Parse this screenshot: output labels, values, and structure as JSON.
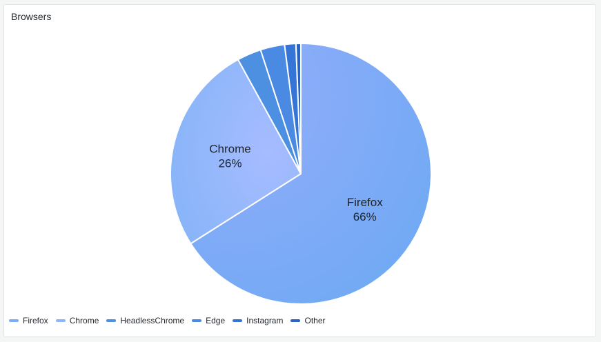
{
  "panel": {
    "title": "Browsers"
  },
  "chart_data": {
    "type": "pie",
    "title": "Browsers",
    "legend_position": "bottom-left",
    "slices": [
      {
        "name": "Firefox",
        "value": 66,
        "label": "Firefox",
        "percent_label": "66%",
        "color": "#7aacf7",
        "show_label": true
      },
      {
        "name": "Chrome",
        "value": 26,
        "label": "Chrome",
        "percent_label": "26%",
        "color": "#8cb6fb",
        "show_label": true
      },
      {
        "name": "HeadlessChrome",
        "value": 3,
        "label": "HeadlessChrome",
        "percent_label": "",
        "color": "#4d8fe0",
        "show_label": false
      },
      {
        "name": "Edge",
        "value": 3,
        "label": "Edge",
        "percent_label": "",
        "color": "#4a8ae2",
        "show_label": false
      },
      {
        "name": "Instagram",
        "value": 1.4,
        "label": "Instagram",
        "percent_label": "",
        "color": "#3575d8",
        "show_label": false
      },
      {
        "name": "Other",
        "value": 0.6,
        "label": "Other",
        "percent_label": "",
        "color": "#2a63c4",
        "show_label": false
      }
    ]
  }
}
